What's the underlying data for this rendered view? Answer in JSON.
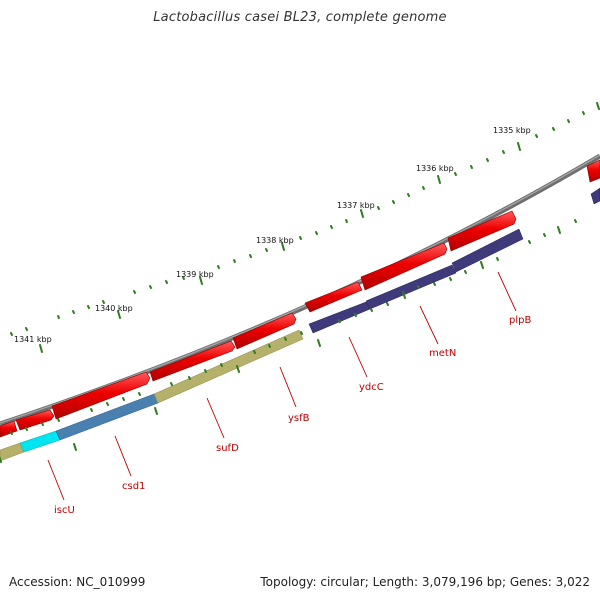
{
  "title": "Lactobacillus casei BL23, complete genome",
  "accession": "Accession: NC_010999",
  "summary": "Topology: circular; Length: 3,079,196 bp; Genes: 3,022",
  "kbp_labels": [
    "1335 kbp",
    "1336 kbp",
    "1337 kbp",
    "1338 kbp",
    "1339 kbp",
    "1340 kbp",
    "1341 kbp"
  ],
  "gene_labels": [
    "plpB",
    "metN",
    "ydcC",
    "ysfB",
    "sufD",
    "csd1",
    "iscU"
  ],
  "colors": {
    "backbone": "#808080",
    "forward_cds": "#ee0000",
    "cog_metabolism": "#3f3a7a",
    "cog_khaki": "#b5b06a",
    "cog_steel": "#4a80b0",
    "cog_cyan": "#00e5f0",
    "ticks": "#2e7d20",
    "labels": "#c00000"
  }
}
